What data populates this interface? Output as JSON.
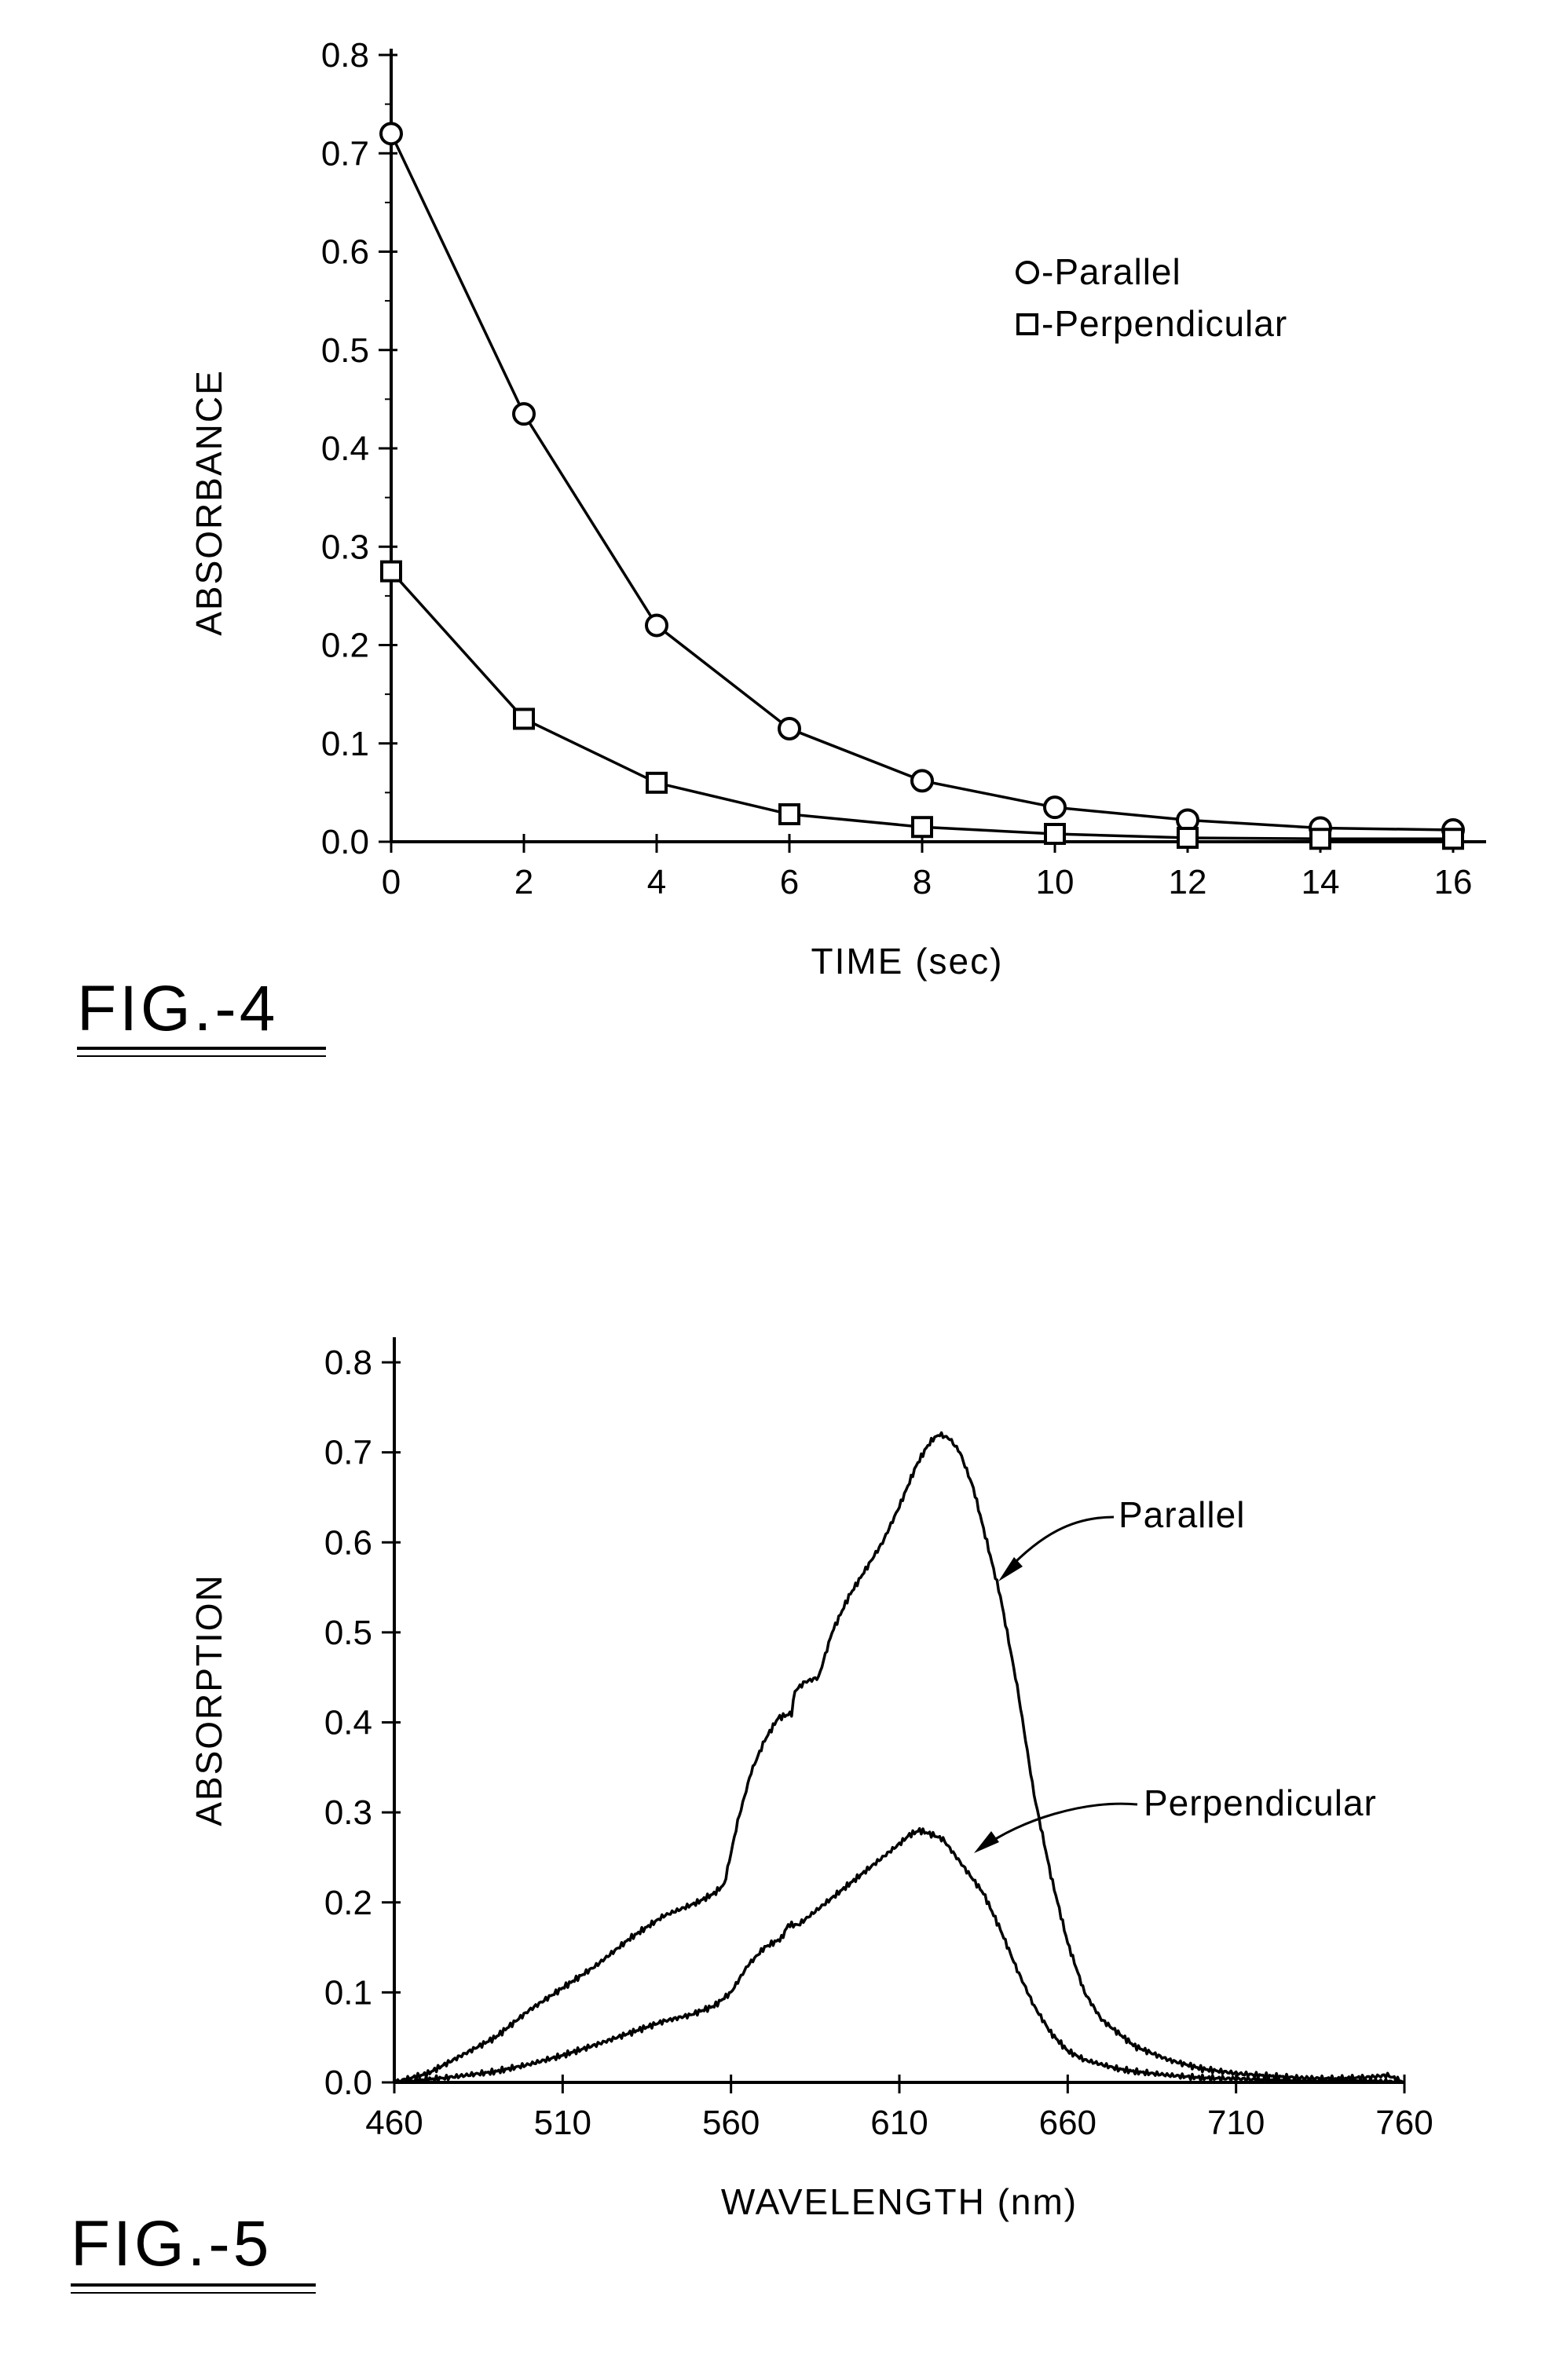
{
  "colors": {
    "ink": "#000000",
    "background": "#ffffff"
  },
  "chart_data": [
    {
      "id": "fig4",
      "type": "line",
      "figure_label": "FIG.-4",
      "xlabel": "TIME (sec)",
      "ylabel": "ABSORBANCE",
      "xlim": [
        0,
        16
      ],
      "ylim": [
        0,
        0.8
      ],
      "x_ticks": [
        "0",
        "2",
        "4",
        "6",
        "8",
        "10",
        "12",
        "14",
        "16"
      ],
      "y_ticks": [
        "0.0",
        "0.1",
        "0.2",
        "0.3",
        "0.4",
        "0.5",
        "0.6",
        "0.7",
        "0.8"
      ],
      "grid": false,
      "legend_position": "top-right",
      "series": [
        {
          "name": "Parallel",
          "legend_text": "-Parallel",
          "marker": "circle",
          "x": [
            0,
            2,
            4,
            6,
            8,
            10,
            12,
            14,
            16
          ],
          "y": [
            0.72,
            0.435,
            0.22,
            0.115,
            0.062,
            0.035,
            0.022,
            0.014,
            0.012
          ]
        },
        {
          "name": "Perpendicular",
          "legend_text": "-Perpendicular",
          "marker": "square",
          "x": [
            0,
            2,
            4,
            6,
            8,
            10,
            12,
            14,
            16
          ],
          "y": [
            0.275,
            0.125,
            0.06,
            0.028,
            0.015,
            0.008,
            0.004,
            0.003,
            0.003
          ]
        }
      ]
    },
    {
      "id": "fig5",
      "type": "line",
      "figure_label": "FIG.-5",
      "xlabel": "WAVELENGTH (nm)",
      "ylabel": "ABSORPTION",
      "xlim": [
        460,
        760
      ],
      "ylim": [
        0,
        0.8
      ],
      "x_ticks": [
        "460",
        "510",
        "560",
        "610",
        "660",
        "710",
        "760"
      ],
      "y_ticks": [
        "0.0",
        "0.1",
        "0.2",
        "0.3",
        "0.4",
        "0.5",
        "0.6",
        "0.7",
        "0.8"
      ],
      "grid": false,
      "legend_position": "curve annotations",
      "series": [
        {
          "name": "Parallel",
          "x": [
            460,
            470,
            480,
            490,
            500,
            510,
            520,
            530,
            540,
            550,
            555,
            558,
            562,
            566,
            570,
            574,
            578,
            579,
            582,
            586,
            590,
            595,
            600,
            605,
            610,
            615,
            618,
            620,
            622,
            625,
            628,
            632,
            636,
            640,
            645,
            650,
            655,
            660,
            665,
            670,
            680,
            690,
            700,
            710,
            720,
            730,
            740,
            750,
            755,
            760
          ],
          "y": [
            0.0,
            0.01,
            0.03,
            0.05,
            0.08,
            0.105,
            0.13,
            0.16,
            0.185,
            0.2,
            0.21,
            0.22,
            0.29,
            0.345,
            0.38,
            0.405,
            0.41,
            0.435,
            0.445,
            0.45,
            0.5,
            0.54,
            0.57,
            0.6,
            0.64,
            0.685,
            0.705,
            0.715,
            0.72,
            0.715,
            0.7,
            0.66,
            0.6,
            0.54,
            0.44,
            0.32,
            0.23,
            0.155,
            0.1,
            0.07,
            0.04,
            0.025,
            0.015,
            0.01,
            0.007,
            0.005,
            0.004,
            0.006,
            0.008,
            0.0
          ]
        },
        {
          "name": "Perpendicular",
          "x": [
            460,
            475,
            490,
            500,
            510,
            520,
            530,
            540,
            548,
            555,
            560,
            565,
            570,
            575,
            577,
            580,
            585,
            590,
            595,
            600,
            605,
            610,
            613,
            616,
            620,
            623,
            626,
            630,
            635,
            640,
            645,
            650,
            655,
            660,
            665,
            670,
            675,
            680,
            690,
            700,
            710,
            720,
            730,
            740,
            750,
            760
          ],
          "y": [
            0.0,
            0.005,
            0.012,
            0.02,
            0.03,
            0.042,
            0.055,
            0.068,
            0.075,
            0.085,
            0.1,
            0.13,
            0.15,
            0.16,
            0.175,
            0.175,
            0.19,
            0.205,
            0.22,
            0.235,
            0.25,
            0.265,
            0.275,
            0.28,
            0.275,
            0.27,
            0.255,
            0.235,
            0.21,
            0.17,
            0.125,
            0.085,
            0.055,
            0.035,
            0.025,
            0.02,
            0.015,
            0.012,
            0.008,
            0.005,
            0.004,
            0.003,
            0.002,
            0.002,
            0.002,
            0.0
          ]
        }
      ]
    }
  ]
}
